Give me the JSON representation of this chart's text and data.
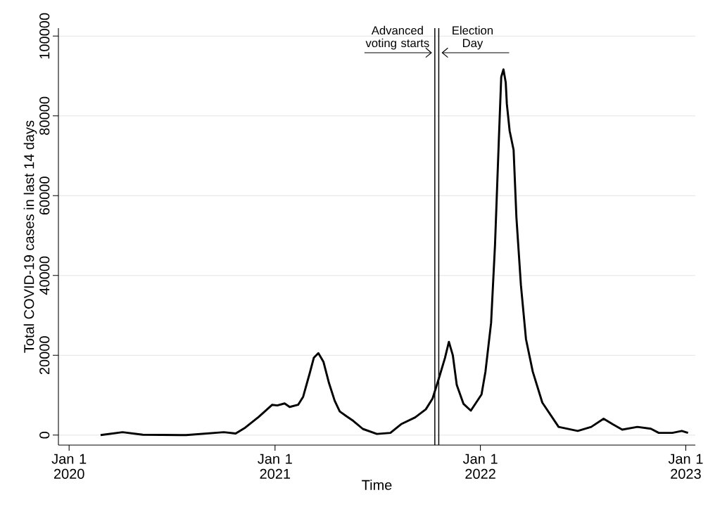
{
  "chart_data": {
    "type": "line",
    "xlabel": "Time",
    "ylabel": "Total COVID-19 cases in last 14 days",
    "color": "#000000",
    "grid": "y",
    "x": [
      "2020-02-26",
      "2020-04-05",
      "2020-05-11",
      "2020-07-27",
      "2020-10-02",
      "2020-10-23",
      "2020-11-09",
      "2020-12-03",
      "2020-12-27",
      "2021-01-05",
      "2021-01-18",
      "2021-01-27",
      "2021-02-11",
      "2021-02-20",
      "2021-03-04",
      "2021-03-11",
      "2021-03-19",
      "2021-03-28",
      "2021-04-07",
      "2021-04-17",
      "2021-04-26",
      "2021-05-08",
      "2021-05-20",
      "2021-06-06",
      "2021-07-01",
      "2021-07-25",
      "2021-08-13",
      "2021-09-07",
      "2021-09-26",
      "2021-10-08",
      "2021-10-20",
      "2021-10-30",
      "2021-11-06",
      "2021-11-13",
      "2021-11-20",
      "2021-12-02",
      "2021-12-15",
      "2022-01-03",
      "2022-01-10",
      "2022-01-20",
      "2022-01-27",
      "2022-02-03",
      "2022-02-07",
      "2022-02-11",
      "2022-02-15",
      "2022-02-17",
      "2022-02-22",
      "2022-03-01",
      "2022-03-06",
      "2022-03-14",
      "2022-03-23",
      "2022-04-04",
      "2022-04-21",
      "2022-05-20",
      "2022-06-23",
      "2022-07-17",
      "2022-08-08",
      "2022-08-24",
      "2022-09-10",
      "2022-10-07",
      "2022-10-31",
      "2022-11-14",
      "2022-12-08",
      "2022-12-25",
      "2023-01-05"
    ],
    "values": [
      0,
      740,
      100,
      0,
      740,
      400,
      1880,
      4580,
      7600,
      7430,
      7940,
      7060,
      7600,
      9630,
      15690,
      19400,
      20550,
      18400,
      13000,
      8630,
      5930,
      4720,
      3570,
      1550,
      300,
      560,
      2730,
      4440,
      6460,
      9170,
      14600,
      19330,
      23380,
      20000,
      12550,
      7820,
      6130,
      10180,
      15930,
      28130,
      47760,
      74860,
      89750,
      91640,
      88400,
      82980,
      76230,
      71480,
      54580,
      37600,
      24070,
      15930,
      8150,
      2060,
      1050,
      2060,
      4090,
      2730,
      1380,
      2060,
      1590,
      560,
      560,
      1050,
      560
    ],
    "xlim": [
      "2019-12-13",
      "2023-01-18"
    ],
    "ylim": [
      -2500,
      102000
    ],
    "xticks": [
      {
        "value": "2020-01-01",
        "label": "Jan 1 2020"
      },
      {
        "value": "2021-01-01",
        "label": "Jan 1 2021"
      },
      {
        "value": "2022-01-01",
        "label": "Jan 1 2022"
      },
      {
        "value": "2023-01-01",
        "label": "Jan 1 2023"
      }
    ],
    "yticks": [
      0,
      20000,
      40000,
      60000,
      80000,
      100000
    ],
    "ref_lines": [
      {
        "axis": "x",
        "value": "2021-10-12",
        "label": "Advanced voting starts",
        "color": "#000000"
      },
      {
        "axis": "x",
        "value": "2021-10-19",
        "label": "Election Day",
        "color": "#000000"
      }
    ]
  }
}
